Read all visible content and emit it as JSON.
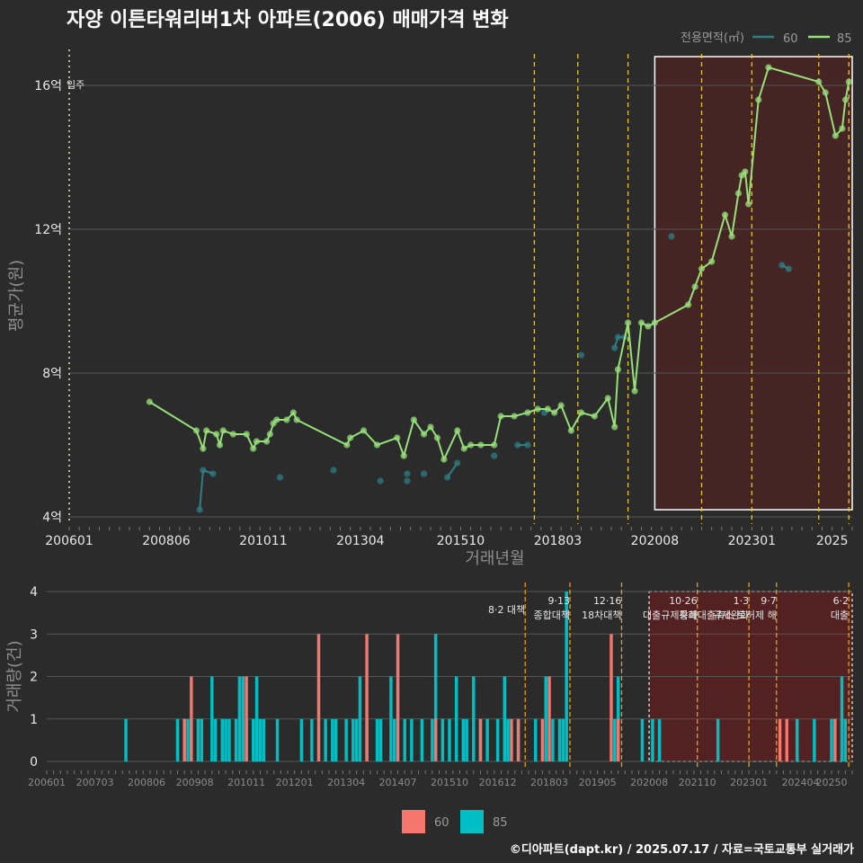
{
  "title": "자양 이튼타워리버1차 아파트(2006) 매매가격 변화",
  "footer": "©디아파트(dapt.kr) / 2025.07.17 / 자료=국토교통부 실거래가",
  "colors": {
    "background": "#2b2b2b",
    "grid": "#545454",
    "series_60": "#2e7f85",
    "series_85": "#97e07a",
    "bar_60": "#f4766d",
    "bar_85": "#00bfc4",
    "policy_line": "#e5c33a",
    "policy_line_bottom": "#e0a020",
    "highlight_fill": "#4a2323",
    "highlight_fill_bottom": "#5a2020"
  },
  "chart_data": [
    {
      "type": "line",
      "xlabel": "거래년월",
      "ylabel": "평균가(원)",
      "y_unit": "억",
      "xlim": [
        "2006-01",
        "2025-07"
      ],
      "ylim": [
        3.8,
        17.0
      ],
      "x_ticks": [
        "200601",
        "200806",
        "201011",
        "201304",
        "201510",
        "201803",
        "202008",
        "202301",
        "2025"
      ],
      "y_ticks": [
        {
          "value": 4,
          "label": "4억"
        },
        {
          "value": 8,
          "label": "8억"
        },
        {
          "value": 12,
          "label": "12억"
        },
        {
          "value": 16,
          "label": "16억"
        }
      ],
      "legend": {
        "title": "전용면적(㎡)",
        "position": "top-right",
        "items": [
          "60",
          "85"
        ]
      },
      "annotations": [
        {
          "x": "2006-01",
          "label": "입주"
        }
      ],
      "policy_lines": [
        "2017-08",
        "2018-09",
        "2019-12",
        "2021-10",
        "2023-01",
        "2024-09",
        "2025-06"
      ],
      "highlight": {
        "from": "2020-08",
        "to": "2025-07",
        "y_from": 4.2,
        "y_to": 16.8
      },
      "series": [
        {
          "name": "60",
          "points": [
            [
              "2009-04",
              4.2
            ],
            [
              "2009-05",
              5.3
            ],
            [
              "2009-08",
              5.2
            ],
            [
              "2011-04",
              5.1
            ],
            [
              "2012-08",
              5.3
            ],
            [
              "2013-10",
              5.0
            ],
            [
              "2014-06",
              5.2
            ],
            [
              "2014-06",
              5.0
            ],
            [
              "2014-11",
              5.2
            ],
            [
              "2015-06",
              5.1
            ],
            [
              "2015-09",
              5.5
            ],
            [
              "2016-08",
              5.7
            ],
            [
              "2017-03",
              6.0
            ],
            [
              "2017-06",
              6.0
            ],
            [
              "2017-11",
              6.9
            ],
            [
              "2018-10",
              8.5
            ],
            [
              "2019-08",
              8.7
            ],
            [
              "2019-09",
              9.0
            ],
            [
              "2019-11",
              9.0
            ],
            [
              "2021-01",
              11.8
            ],
            [
              "2023-10",
              11.0
            ],
            [
              "2023-12",
              10.9
            ]
          ]
        },
        {
          "name": "85",
          "points": [
            [
              "2008-01",
              7.2
            ],
            [
              "2009-03",
              6.4
            ],
            [
              "2009-05",
              5.9
            ],
            [
              "2009-06",
              6.4
            ],
            [
              "2009-09",
              6.3
            ],
            [
              "2009-10",
              6.0
            ],
            [
              "2009-11",
              6.4
            ],
            [
              "2010-02",
              6.3
            ],
            [
              "2010-06",
              6.3
            ],
            [
              "2010-08",
              5.9
            ],
            [
              "2010-09",
              6.1
            ],
            [
              "2010-12",
              6.1
            ],
            [
              "2011-01",
              6.3
            ],
            [
              "2011-02",
              6.6
            ],
            [
              "2011-03",
              6.7
            ],
            [
              "2011-06",
              6.7
            ],
            [
              "2011-08",
              6.9
            ],
            [
              "2011-09",
              6.7
            ],
            [
              "2012-12",
              6.0
            ],
            [
              "2013-01",
              6.2
            ],
            [
              "2013-05",
              6.4
            ],
            [
              "2013-09",
              6.0
            ],
            [
              "2014-03",
              6.2
            ],
            [
              "2014-05",
              5.7
            ],
            [
              "2014-08",
              6.7
            ],
            [
              "2014-11",
              6.3
            ],
            [
              "2015-01",
              6.5
            ],
            [
              "2015-03",
              6.2
            ],
            [
              "2015-05",
              5.6
            ],
            [
              "2015-09",
              6.4
            ],
            [
              "2015-11",
              5.9
            ],
            [
              "2016-01",
              6.0
            ],
            [
              "2016-04",
              6.0
            ],
            [
              "2016-08",
              6.0
            ],
            [
              "2016-10",
              6.8
            ],
            [
              "2017-02",
              6.8
            ],
            [
              "2017-06",
              6.9
            ],
            [
              "2017-09",
              7.0
            ],
            [
              "2017-12",
              7.0
            ],
            [
              "2018-02",
              6.9
            ],
            [
              "2018-04",
              7.1
            ],
            [
              "2018-07",
              6.4
            ],
            [
              "2018-10",
              6.9
            ],
            [
              "2019-02",
              6.8
            ],
            [
              "2019-06",
              7.3
            ],
            [
              "2019-08",
              6.5
            ],
            [
              "2019-09",
              8.1
            ],
            [
              "2019-12",
              9.4
            ],
            [
              "2020-02",
              7.5
            ],
            [
              "2020-04",
              9.4
            ],
            [
              "2020-06",
              9.3
            ],
            [
              "2020-08",
              9.4
            ],
            [
              "2021-06",
              9.9
            ],
            [
              "2021-08",
              10.4
            ],
            [
              "2021-10",
              10.9
            ],
            [
              "2022-01",
              11.1
            ],
            [
              "2022-05",
              12.4
            ],
            [
              "2022-07",
              11.8
            ],
            [
              "2022-09",
              13.0
            ],
            [
              "2022-10",
              13.5
            ],
            [
              "2022-11",
              13.6
            ],
            [
              "2022-12",
              12.7
            ],
            [
              "2023-03",
              15.6
            ],
            [
              "2023-06",
              16.5
            ],
            [
              "2024-09",
              16.1
            ],
            [
              "2024-11",
              15.8
            ],
            [
              "2025-02",
              14.6
            ],
            [
              "2025-04",
              14.8
            ],
            [
              "2025-05",
              15.6
            ],
            [
              "2025-06",
              16.1
            ]
          ]
        }
      ]
    },
    {
      "type": "bar",
      "xlabel": "",
      "ylabel": "거래량(건)",
      "xlim": [
        "2006-01",
        "2025-07"
      ],
      "ylim": [
        0,
        4
      ],
      "y_ticks": [
        0,
        1,
        2,
        3,
        4
      ],
      "x_ticks": [
        "200601",
        "200703",
        "200806",
        "200908",
        "201011",
        "201201",
        "201304",
        "201407",
        "201510",
        "201612",
        "201803",
        "201905",
        "202008",
        "202110",
        "202301",
        "202404",
        "20250"
      ],
      "legend": {
        "position": "bottom",
        "items": [
          "60",
          "85"
        ]
      },
      "policy_lines": [
        {
          "x": "2017-08",
          "label": "8·2 대책"
        },
        {
          "x": "2018-09",
          "label": "9·13\n종합대책"
        },
        {
          "x": "2019-12",
          "label": "12·16\n18차대책"
        },
        {
          "x": "2021-10",
          "label": "10·26\n대출규제강화"
        },
        {
          "x": "2023-01",
          "label": "1·3\n규제완화"
        },
        {
          "x": "2023-09",
          "label": "9·7\n특례대출축소 토허제 해"
        },
        {
          "x": "2025-06",
          "label": "6·2\n대출"
        }
      ],
      "highlight": {
        "from": "2020-08",
        "to": "2025-07"
      },
      "bars_85": [
        [
          "2007-12",
          1
        ],
        [
          "2009-03",
          1
        ],
        [
          "2009-05",
          1
        ],
        [
          "2009-06",
          1
        ],
        [
          "2009-07",
          1
        ],
        [
          "2009-09",
          1
        ],
        [
          "2009-10",
          1
        ],
        [
          "2010-01",
          2
        ],
        [
          "2010-02",
          1
        ],
        [
          "2010-04",
          1
        ],
        [
          "2010-05",
          1
        ],
        [
          "2010-06",
          1
        ],
        [
          "2010-08",
          1
        ],
        [
          "2010-09",
          2
        ],
        [
          "2010-10",
          2
        ],
        [
          "2010-11",
          1
        ],
        [
          "2011-01",
          1
        ],
        [
          "2011-02",
          2
        ],
        [
          "2011-03",
          1
        ],
        [
          "2011-04",
          1
        ],
        [
          "2011-08",
          1
        ],
        [
          "2012-03",
          1
        ],
        [
          "2012-06",
          1
        ],
        [
          "2012-10",
          1
        ],
        [
          "2012-12",
          1
        ],
        [
          "2013-01",
          1
        ],
        [
          "2013-04",
          1
        ],
        [
          "2013-06",
          1
        ],
        [
          "2013-07",
          1
        ],
        [
          "2013-08",
          2
        ],
        [
          "2013-10",
          1
        ],
        [
          "2014-01",
          1
        ],
        [
          "2014-02",
          1
        ],
        [
          "2014-05",
          2
        ],
        [
          "2014-06",
          1
        ],
        [
          "2014-09",
          1
        ],
        [
          "2014-11",
          1
        ],
        [
          "2015-02",
          1
        ],
        [
          "2015-05",
          1
        ],
        [
          "2015-06",
          3
        ],
        [
          "2015-08",
          1
        ],
        [
          "2015-10",
          1
        ],
        [
          "2015-12",
          2
        ],
        [
          "2016-02",
          1
        ],
        [
          "2016-03",
          1
        ],
        [
          "2016-05",
          2
        ],
        [
          "2016-07",
          1
        ],
        [
          "2016-09",
          1
        ],
        [
          "2016-12",
          1
        ],
        [
          "2017-02",
          2
        ],
        [
          "2017-03",
          1
        ],
        [
          "2017-06",
          1
        ],
        [
          "2017-11",
          1
        ],
        [
          "2018-02",
          2
        ],
        [
          "2018-04",
          1
        ],
        [
          "2018-06",
          1
        ],
        [
          "2018-07",
          1
        ],
        [
          "2018-08",
          4
        ],
        [
          "2019-10",
          1
        ],
        [
          "2019-11",
          2
        ],
        [
          "2020-06",
          1
        ],
        [
          "2020-09",
          1
        ],
        [
          "2020-11",
          1
        ],
        [
          "2022-04",
          1
        ],
        [
          "2024-03",
          1
        ],
        [
          "2024-08",
          1
        ],
        [
          "2025-01",
          1
        ],
        [
          "2025-04",
          2
        ],
        [
          "2025-05",
          1
        ]
      ],
      "bars_60": [
        [
          "2009-05",
          1
        ],
        [
          "2009-07",
          2
        ],
        [
          "2010-11",
          2
        ],
        [
          "2012-08",
          3
        ],
        [
          "2013-10",
          3
        ],
        [
          "2014-07",
          3
        ],
        [
          "2015-06",
          1
        ],
        [
          "2016-07",
          1
        ],
        [
          "2017-04",
          1
        ],
        [
          "2017-06",
          1
        ],
        [
          "2018-01",
          1
        ],
        [
          "2018-03",
          2
        ],
        [
          "2019-09",
          3
        ],
        [
          "2019-11",
          1
        ],
        [
          "2023-10",
          1
        ],
        [
          "2023-12",
          1
        ],
        [
          "2025-02",
          1
        ]
      ]
    }
  ]
}
